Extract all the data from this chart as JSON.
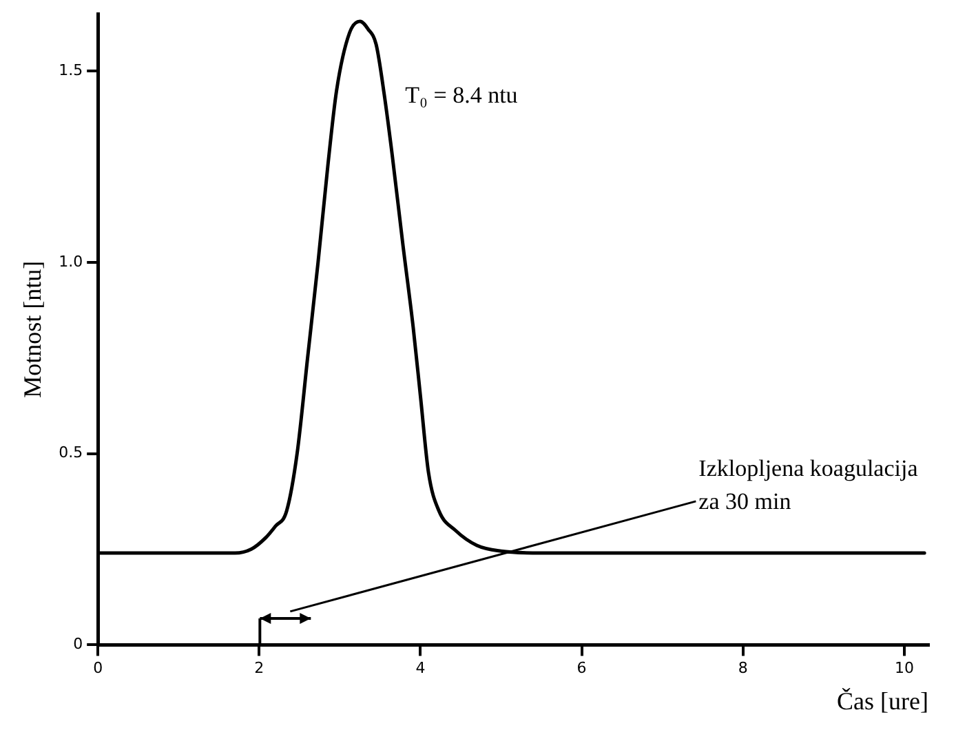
{
  "chart_data": {
    "type": "line",
    "xlabel": "Čas [ure]",
    "ylabel": "Motnost [ntu]",
    "x": [
      0,
      0.5,
      1,
      1.5,
      1.7,
      1.9,
      2.08,
      2.2,
      2.34,
      2.47,
      2.6,
      2.73,
      2.85,
      2.96,
      3.12,
      3.25,
      3.35,
      3.45,
      3.55,
      3.65,
      3.78,
      3.91,
      4.0,
      4.1,
      4.23,
      4.43,
      4.7,
      5.0,
      5.5,
      6,
      7,
      8,
      9,
      10,
      10.25
    ],
    "series": [
      {
        "color": "#000000",
        "values": [
          0.24,
          0.24,
          0.24,
          0.24,
          0.24,
          0.25,
          0.28,
          0.31,
          0.35,
          0.5,
          0.75,
          1.0,
          1.25,
          1.45,
          1.6,
          1.63,
          1.61,
          1.57,
          1.44,
          1.28,
          1.05,
          0.83,
          0.65,
          0.45,
          0.35,
          0.3,
          0.26,
          0.245,
          0.24,
          0.24,
          0.24,
          0.24,
          0.24,
          0.24,
          0.24
        ]
      }
    ],
    "xlim": [
      0,
      10.3
    ],
    "xticks": [
      0,
      2,
      4,
      6,
      8,
      10
    ],
    "ylim": [
      0,
      1.65
    ],
    "yticks": [
      0,
      {
        "value": 0.5,
        "label": "0.5"
      },
      {
        "value": 1,
        "label": "1.0"
      },
      {
        "value": 1.5,
        "label": "1.5"
      }
    ],
    "grid": false,
    "legend": false,
    "marker": "none",
    "line_style": "solid",
    "annotations": [
      "T₀ = 8.4 ntu",
      "Izklopljena koagulacija za 30 min"
    ]
  }
}
